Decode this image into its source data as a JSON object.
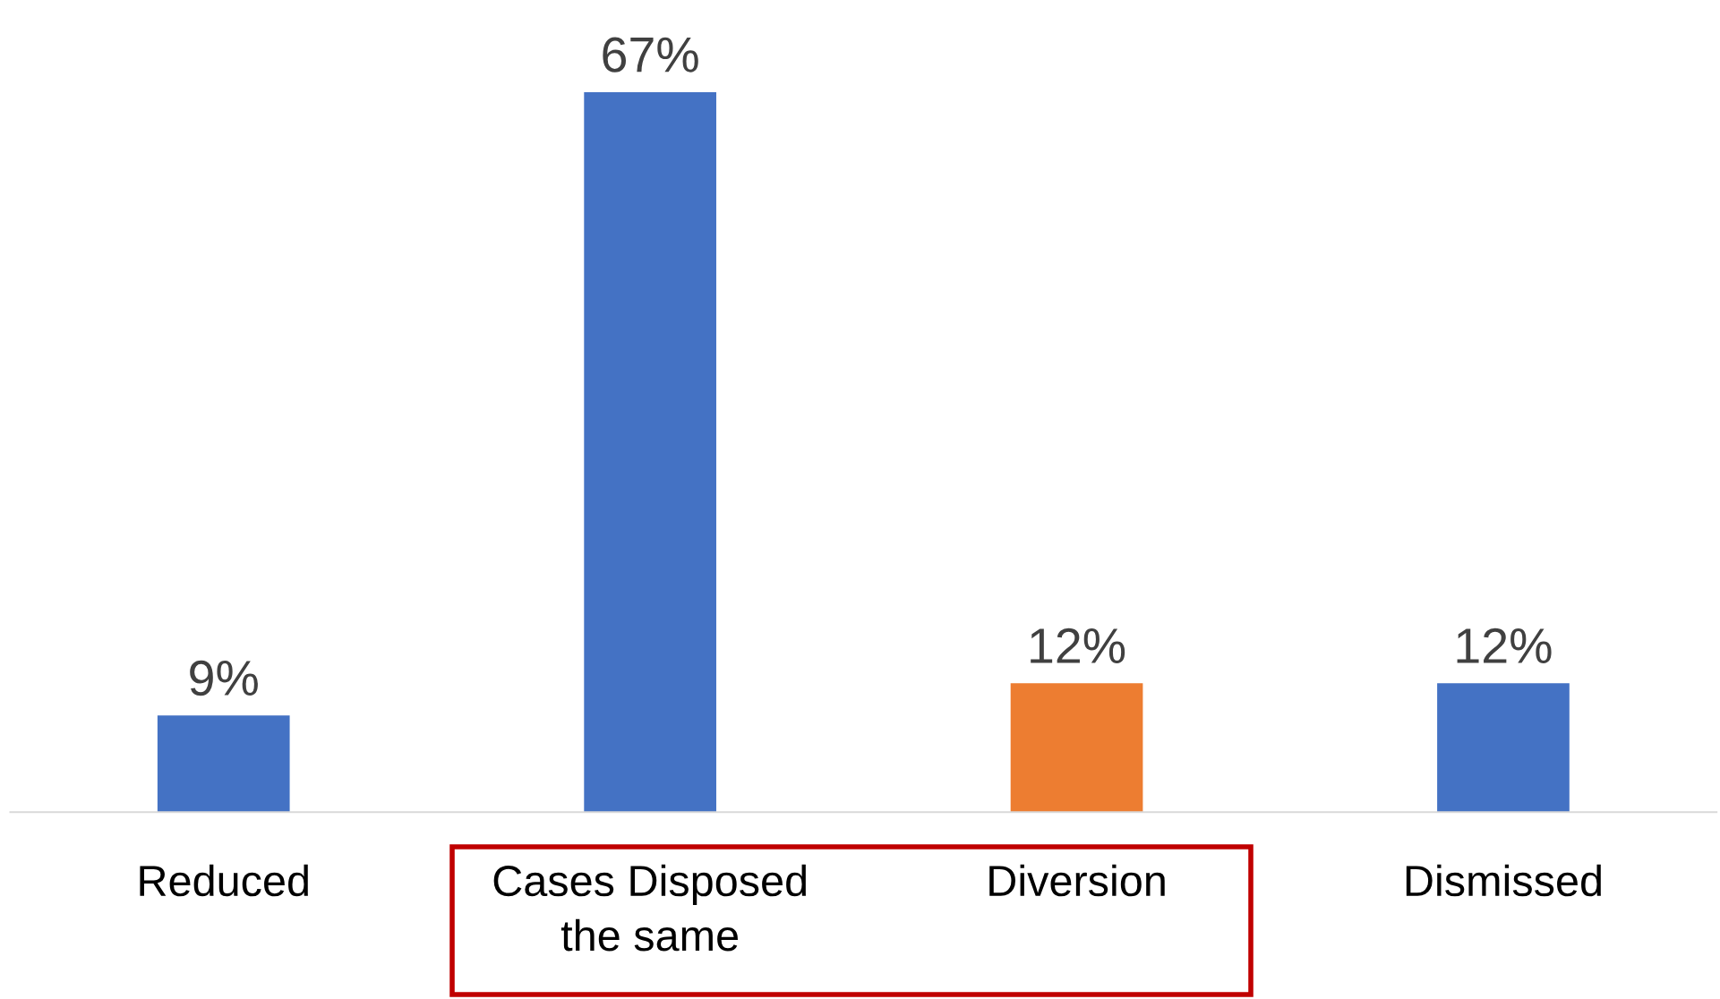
{
  "chart_data": {
    "type": "bar",
    "categories": [
      "Reduced",
      "Cases Disposed\nthe same",
      "Diversion",
      "Dismissed"
    ],
    "values": [
      9,
      67,
      12,
      12
    ],
    "colors": [
      "#4472c4",
      "#4472c4",
      "#ed7d31",
      "#4472c4"
    ],
    "value_labels": [
      "9%",
      "67%",
      "12%",
      "12%"
    ],
    "grid": false,
    "legend": false
  }
}
